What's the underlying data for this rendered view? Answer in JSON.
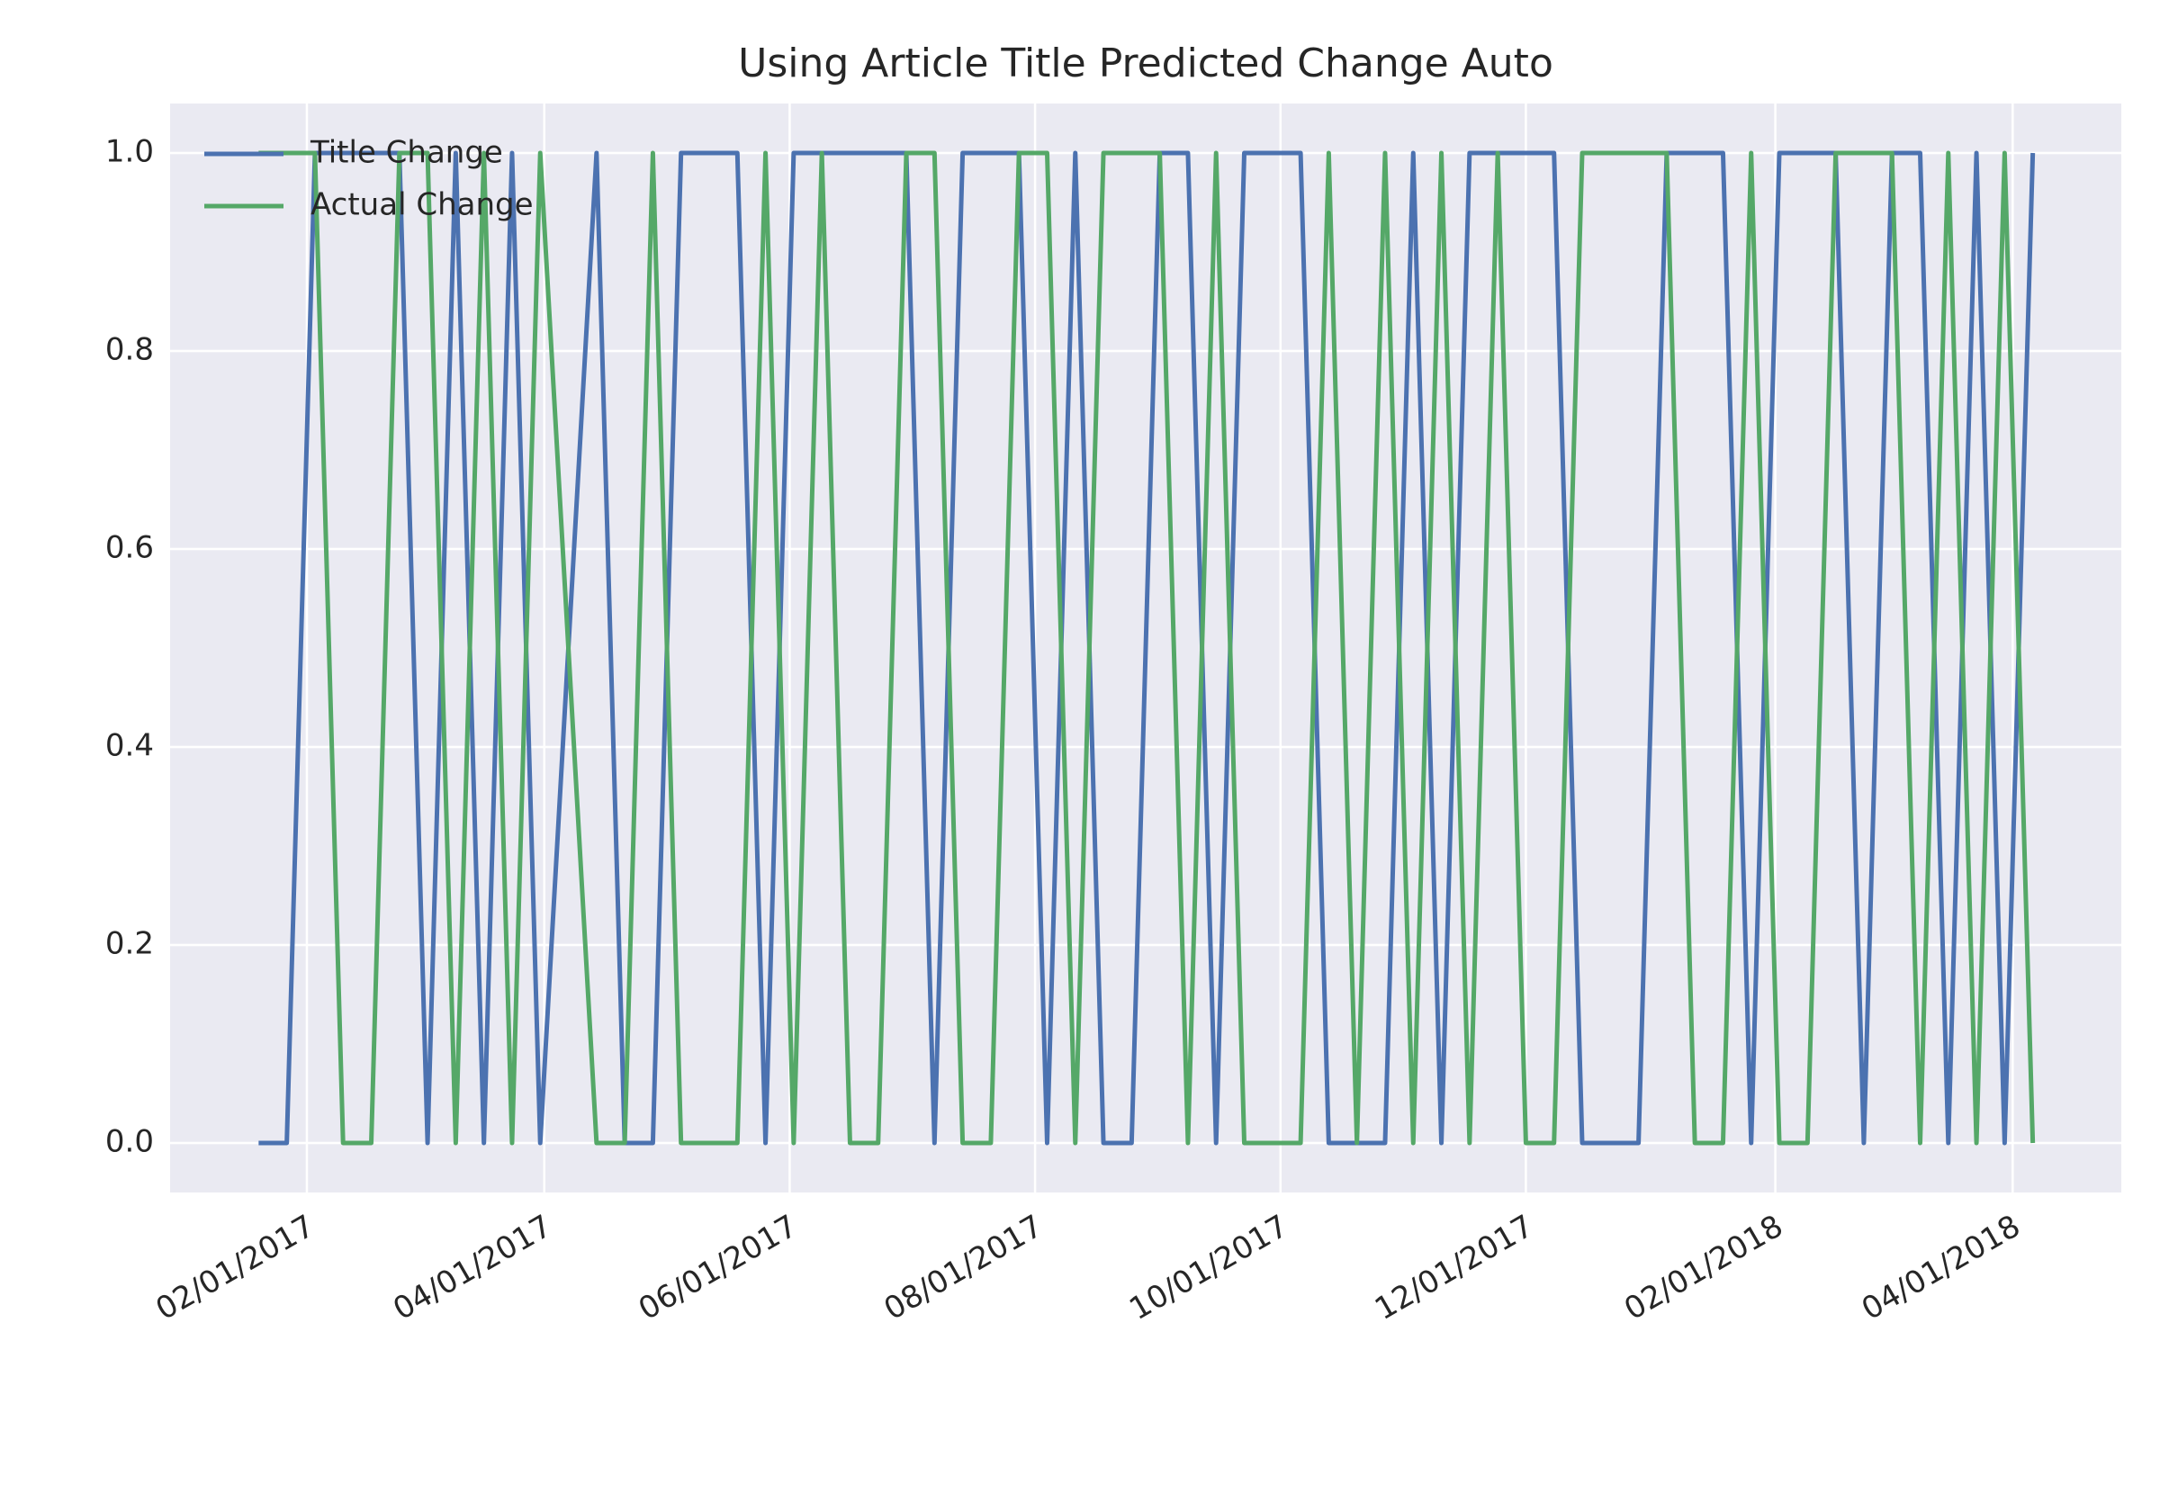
{
  "chart_data": {
    "type": "line",
    "title": "Using Article Title Predicted Change Auto",
    "x": [
      "2017-01-20",
      "2017-01-27",
      "2017-02-03",
      "2017-02-10",
      "2017-02-17",
      "2017-02-24",
      "2017-03-03",
      "2017-03-10",
      "2017-03-17",
      "2017-03-24",
      "2017-03-31",
      "2017-04-14",
      "2017-04-21",
      "2017-04-28",
      "2017-05-05",
      "2017-05-12",
      "2017-05-19",
      "2017-05-26",
      "2017-06-02",
      "2017-06-09",
      "2017-06-16",
      "2017-06-23",
      "2017-06-30",
      "2017-07-07",
      "2017-07-14",
      "2017-07-21",
      "2017-07-28",
      "2017-08-04",
      "2017-08-11",
      "2017-08-18",
      "2017-08-25",
      "2017-09-01",
      "2017-09-08",
      "2017-09-15",
      "2017-09-22",
      "2017-09-29",
      "2017-10-06",
      "2017-10-13",
      "2017-10-20",
      "2017-10-27",
      "2017-11-03",
      "2017-11-10",
      "2017-11-17",
      "2017-11-24",
      "2017-12-01",
      "2017-12-08",
      "2017-12-15",
      "2017-12-22",
      "2017-12-29",
      "2018-01-05",
      "2018-01-12",
      "2018-01-19",
      "2018-01-26",
      "2018-02-02",
      "2018-02-09",
      "2018-02-16",
      "2018-02-23",
      "2018-03-02",
      "2018-03-09",
      "2018-03-16",
      "2018-03-23",
      "2018-03-30",
      "2018-04-06"
    ],
    "series": [
      {
        "name": "Title Change",
        "color": "#4c72b0",
        "values": [
          0,
          0,
          1,
          1,
          1,
          1,
          0,
          1,
          0,
          1,
          0,
          1,
          0,
          0,
          1,
          1,
          1,
          0,
          1,
          1,
          1,
          1,
          1,
          0,
          1,
          1,
          1,
          0,
          1,
          0,
          0,
          1,
          1,
          0,
          1,
          1,
          1,
          0,
          0,
          0,
          1,
          0,
          1,
          1,
          1,
          1,
          0,
          0,
          0,
          1,
          1,
          1,
          0,
          1,
          1,
          1,
          0,
          1,
          1,
          0,
          1,
          0,
          1
        ]
      },
      {
        "name": "Actual Change",
        "color": "#55a868",
        "values": [
          1,
          1,
          1,
          0,
          0,
          1,
          1,
          0,
          1,
          0,
          1,
          0,
          0,
          1,
          0,
          0,
          0,
          1,
          0,
          1,
          0,
          0,
          1,
          1,
          0,
          0,
          1,
          1,
          0,
          1,
          1,
          1,
          0,
          1,
          0,
          0,
          0,
          1,
          0,
          1,
          0,
          1,
          0,
          1,
          0,
          0,
          1,
          1,
          1,
          1,
          0,
          0,
          1,
          0,
          0,
          1,
          1,
          1,
          0,
          1,
          0,
          1,
          0
        ]
      }
    ],
    "xlim": [
      "2016-12-29",
      "2018-04-28"
    ],
    "xticks": [
      {
        "value": "2017-02-01",
        "label": "02/01/2017"
      },
      {
        "value": "2017-04-01",
        "label": "04/01/2017"
      },
      {
        "value": "2017-06-01",
        "label": "06/01/2017"
      },
      {
        "value": "2017-08-01",
        "label": "08/01/2017"
      },
      {
        "value": "2017-10-01",
        "label": "10/01/2017"
      },
      {
        "value": "2017-12-01",
        "label": "12/01/2017"
      },
      {
        "value": "2018-02-01",
        "label": "02/01/2018"
      },
      {
        "value": "2018-04-01",
        "label": "04/01/2018"
      }
    ],
    "ylim": [
      -0.05,
      1.05
    ],
    "yticks": [
      {
        "value": 0,
        "label": "0.0"
      },
      {
        "value": 0.2,
        "label": "0.2"
      },
      {
        "value": 0.4,
        "label": "0.4"
      },
      {
        "value": 0.6,
        "label": "0.6"
      },
      {
        "value": 0.8,
        "label": "0.8"
      },
      {
        "value": 1,
        "label": "1.0"
      }
    ],
    "grid": true,
    "legend": "upper left"
  }
}
